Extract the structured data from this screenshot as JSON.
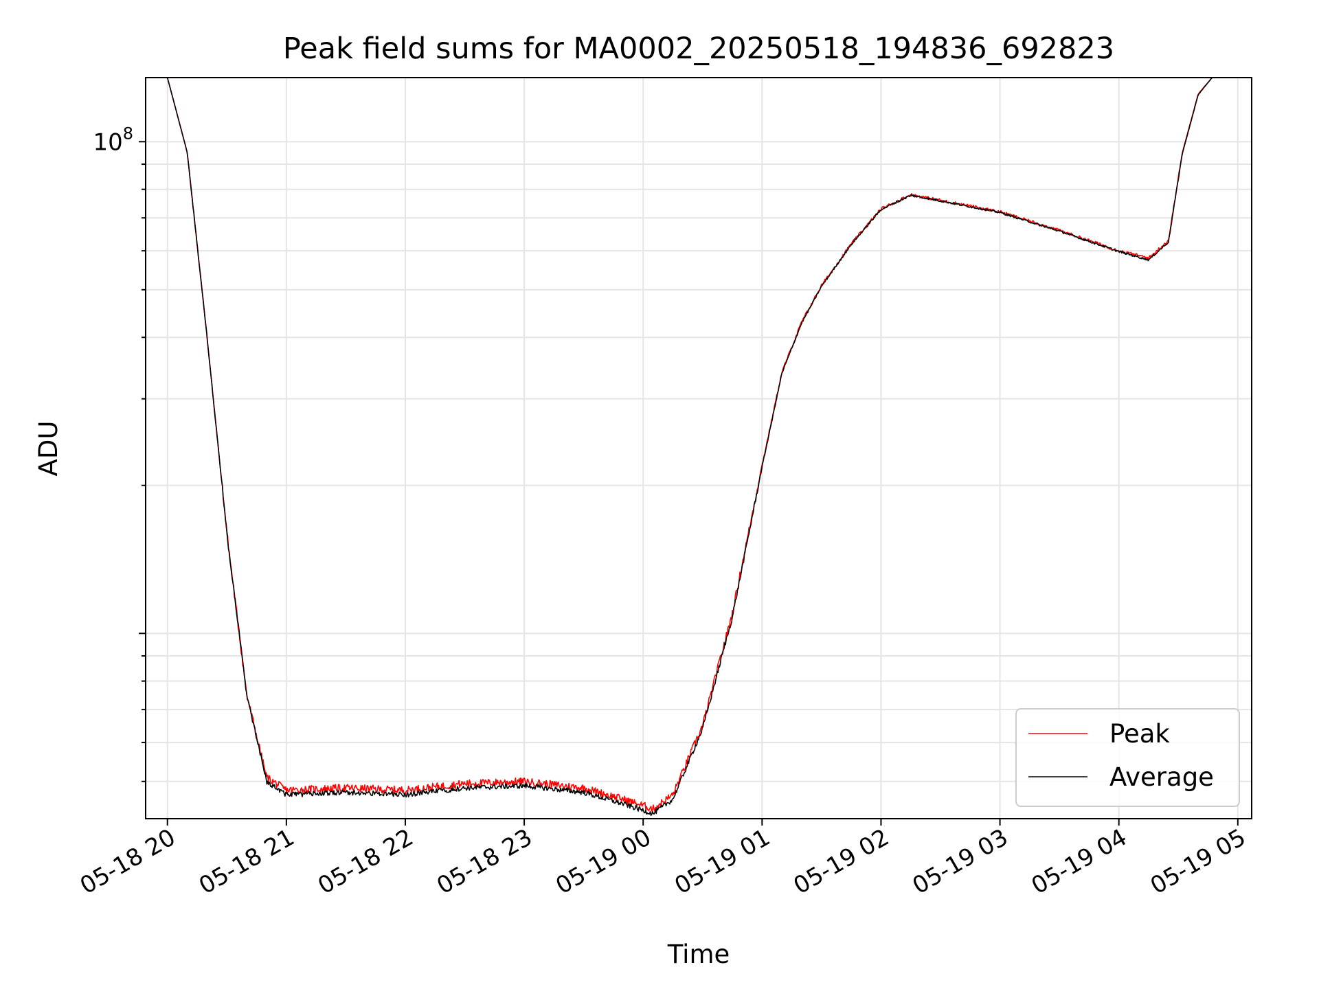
{
  "chart_data": {
    "type": "line",
    "title": "Peak field sums for MA0002_20250518_194836_692823",
    "xlabel": "Time",
    "ylabel": "ADU",
    "y_scale": "log",
    "ylim": [
      4200000,
      135000000.0
    ],
    "xlim": [
      "05-18 19:49",
      "05-19 05:07"
    ],
    "grid": true,
    "legend_position": "lower-right",
    "x_tick_labels": [
      "05-18 20",
      "05-18 21",
      "05-18 22",
      "05-18 23",
      "05-19 00",
      "05-19 01",
      "05-19 02",
      "05-19 03",
      "05-19 04",
      "05-19 05"
    ],
    "y_tick_labels": [
      {
        "base": "10",
        "exp": "8"
      }
    ],
    "x": [
      "05-18 20:00",
      "05-18 20:10",
      "05-18 20:20",
      "05-18 20:30",
      "05-18 20:40",
      "05-18 20:50",
      "05-18 21:00",
      "05-18 21:30",
      "05-18 22:00",
      "05-18 22:30",
      "05-18 23:00",
      "05-18 23:30",
      "05-18 23:50",
      "05-19 00:05",
      "05-19 00:15",
      "05-19 00:30",
      "05-19 00:45",
      "05-19 01:00",
      "05-19 01:10",
      "05-19 01:20",
      "05-19 01:30",
      "05-19 01:45",
      "05-19 02:00",
      "05-19 02:15",
      "05-19 02:30",
      "05-19 03:00",
      "05-19 03:30",
      "05-19 04:00",
      "05-19 04:15",
      "05-19 04:25",
      "05-19 04:32",
      "05-19 04:40",
      "05-19 04:47",
      "05-19 04:52"
    ],
    "series": [
      {
        "name": "Peak",
        "color": "#ff0000",
        "values": [
          135000000,
          95000000,
          40000000,
          16000000,
          7500000,
          5100000,
          4800000,
          4850000,
          4800000,
          4950000,
          5000000,
          4850000,
          4600000,
          4400000,
          4700000,
          6500000,
          11000000,
          22000000,
          34000000,
          43000000,
          51000000,
          62000000,
          73000000,
          78000000,
          76000000,
          72000000,
          66000000,
          60000000,
          58000000,
          63000000,
          95000000,
          125000000,
          135000000,
          135000000
        ]
      },
      {
        "name": "Average",
        "color": "#000000",
        "values": [
          135000000,
          95000000,
          40000000,
          16000000,
          7500000,
          5000000,
          4700000,
          4750000,
          4700000,
          4850000,
          4900000,
          4750000,
          4500000,
          4300000,
          4600000,
          6400000,
          10800000,
          21800000,
          33800000,
          42800000,
          50800000,
          61800000,
          72800000,
          77800000,
          75800000,
          71800000,
          65800000,
          59800000,
          57500000,
          62500000,
          94500000,
          124500000,
          135000000,
          135000000
        ]
      }
    ]
  }
}
